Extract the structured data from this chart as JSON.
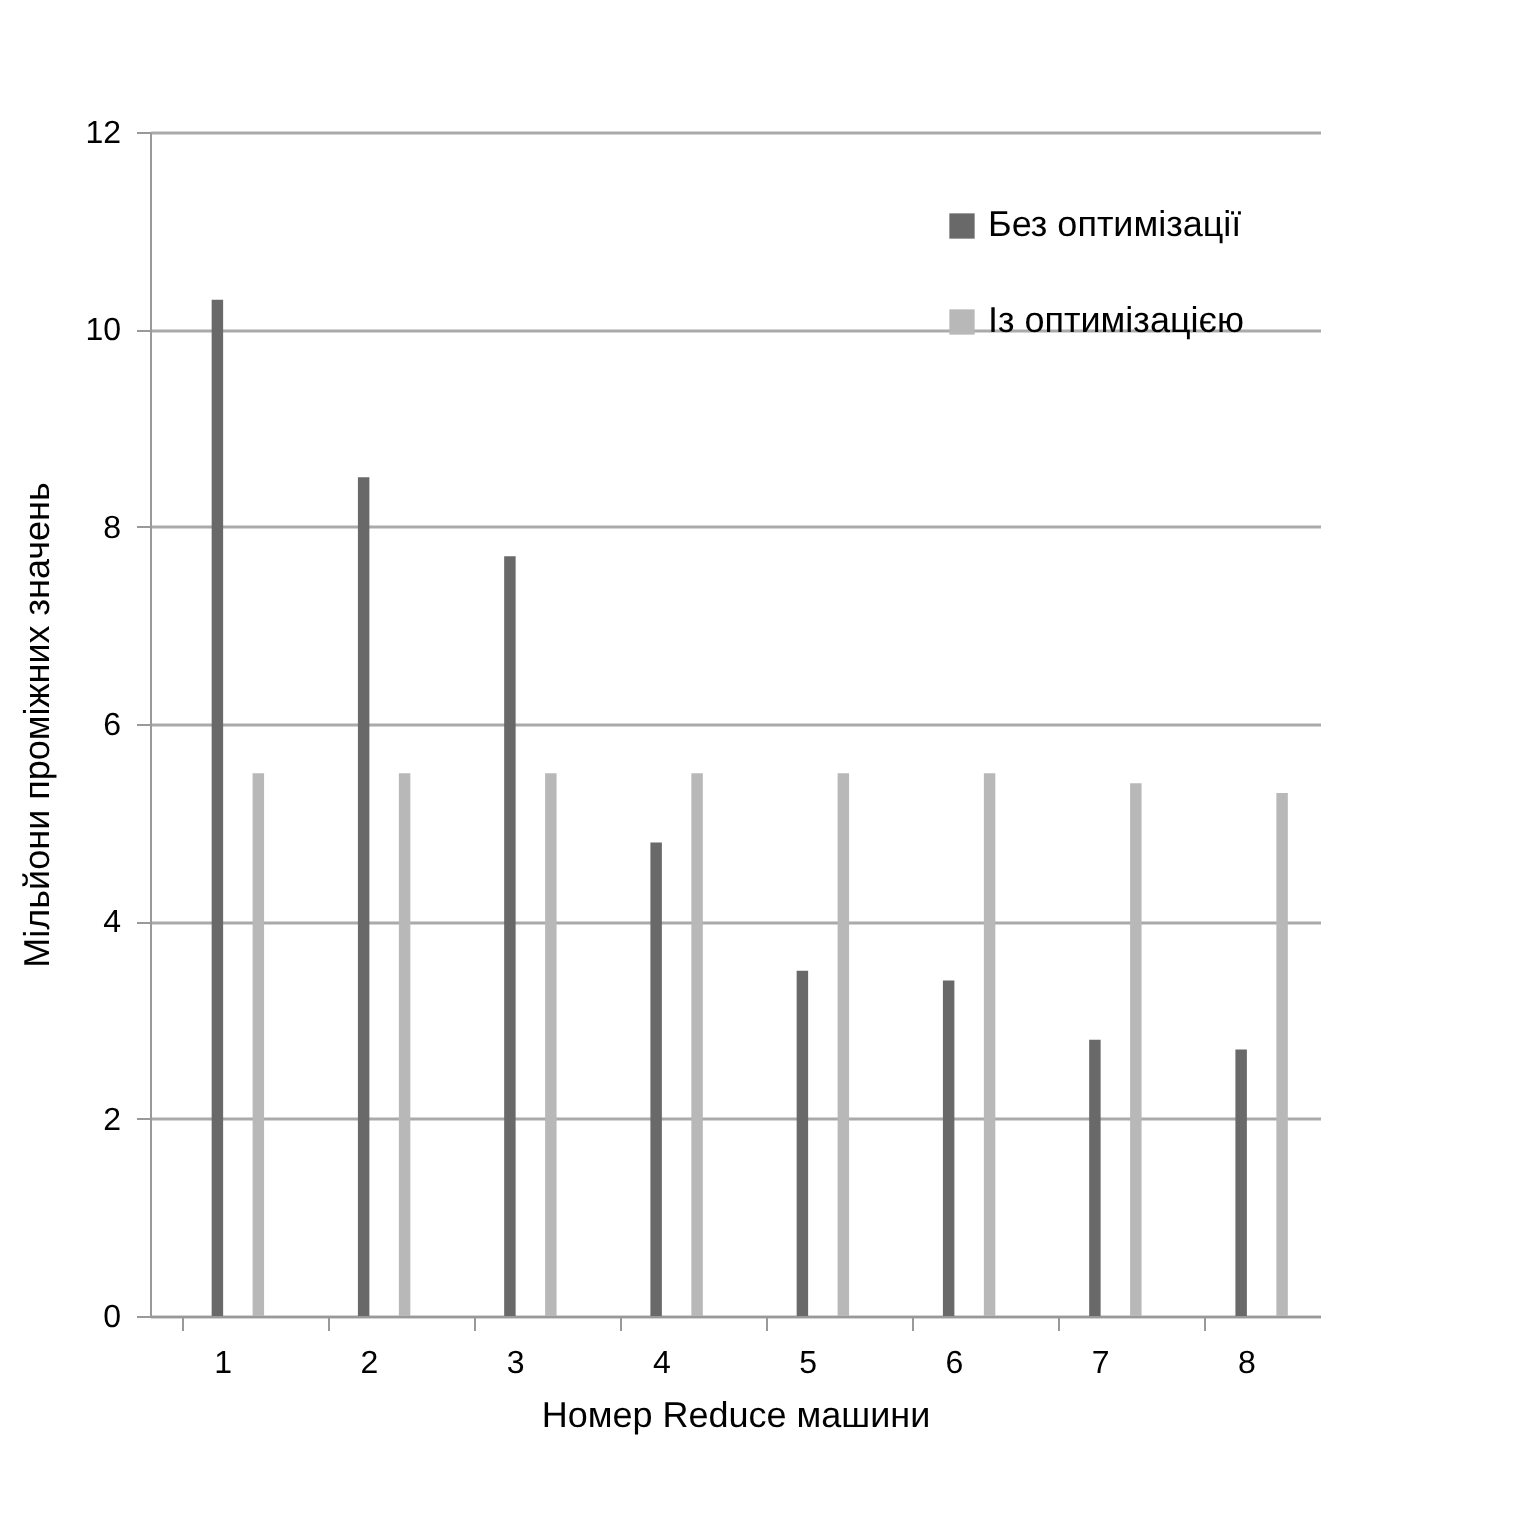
{
  "chart_data": {
    "type": "bar",
    "xlabel": "Номер Reduce машини",
    "ylabel": "Мільйони проміжних значень",
    "categories": [
      "1",
      "2",
      "3",
      "4",
      "5",
      "6",
      "7",
      "8"
    ],
    "series": [
      {
        "name": "Без оптимізації",
        "color": "#696969",
        "values": [
          10.3,
          8.5,
          7.7,
          4.8,
          3.5,
          3.4,
          2.8,
          2.7
        ]
      },
      {
        "name": "Із оптимізацією",
        "color": "#b8b8b8",
        "values": [
          5.5,
          5.5,
          5.5,
          5.5,
          5.5,
          5.5,
          5.4,
          5.3
        ]
      }
    ],
    "ylim": [
      0,
      12
    ],
    "yticks": [
      0,
      2,
      4,
      6,
      8,
      10,
      12
    ],
    "grid": "y",
    "legend": "top right"
  }
}
